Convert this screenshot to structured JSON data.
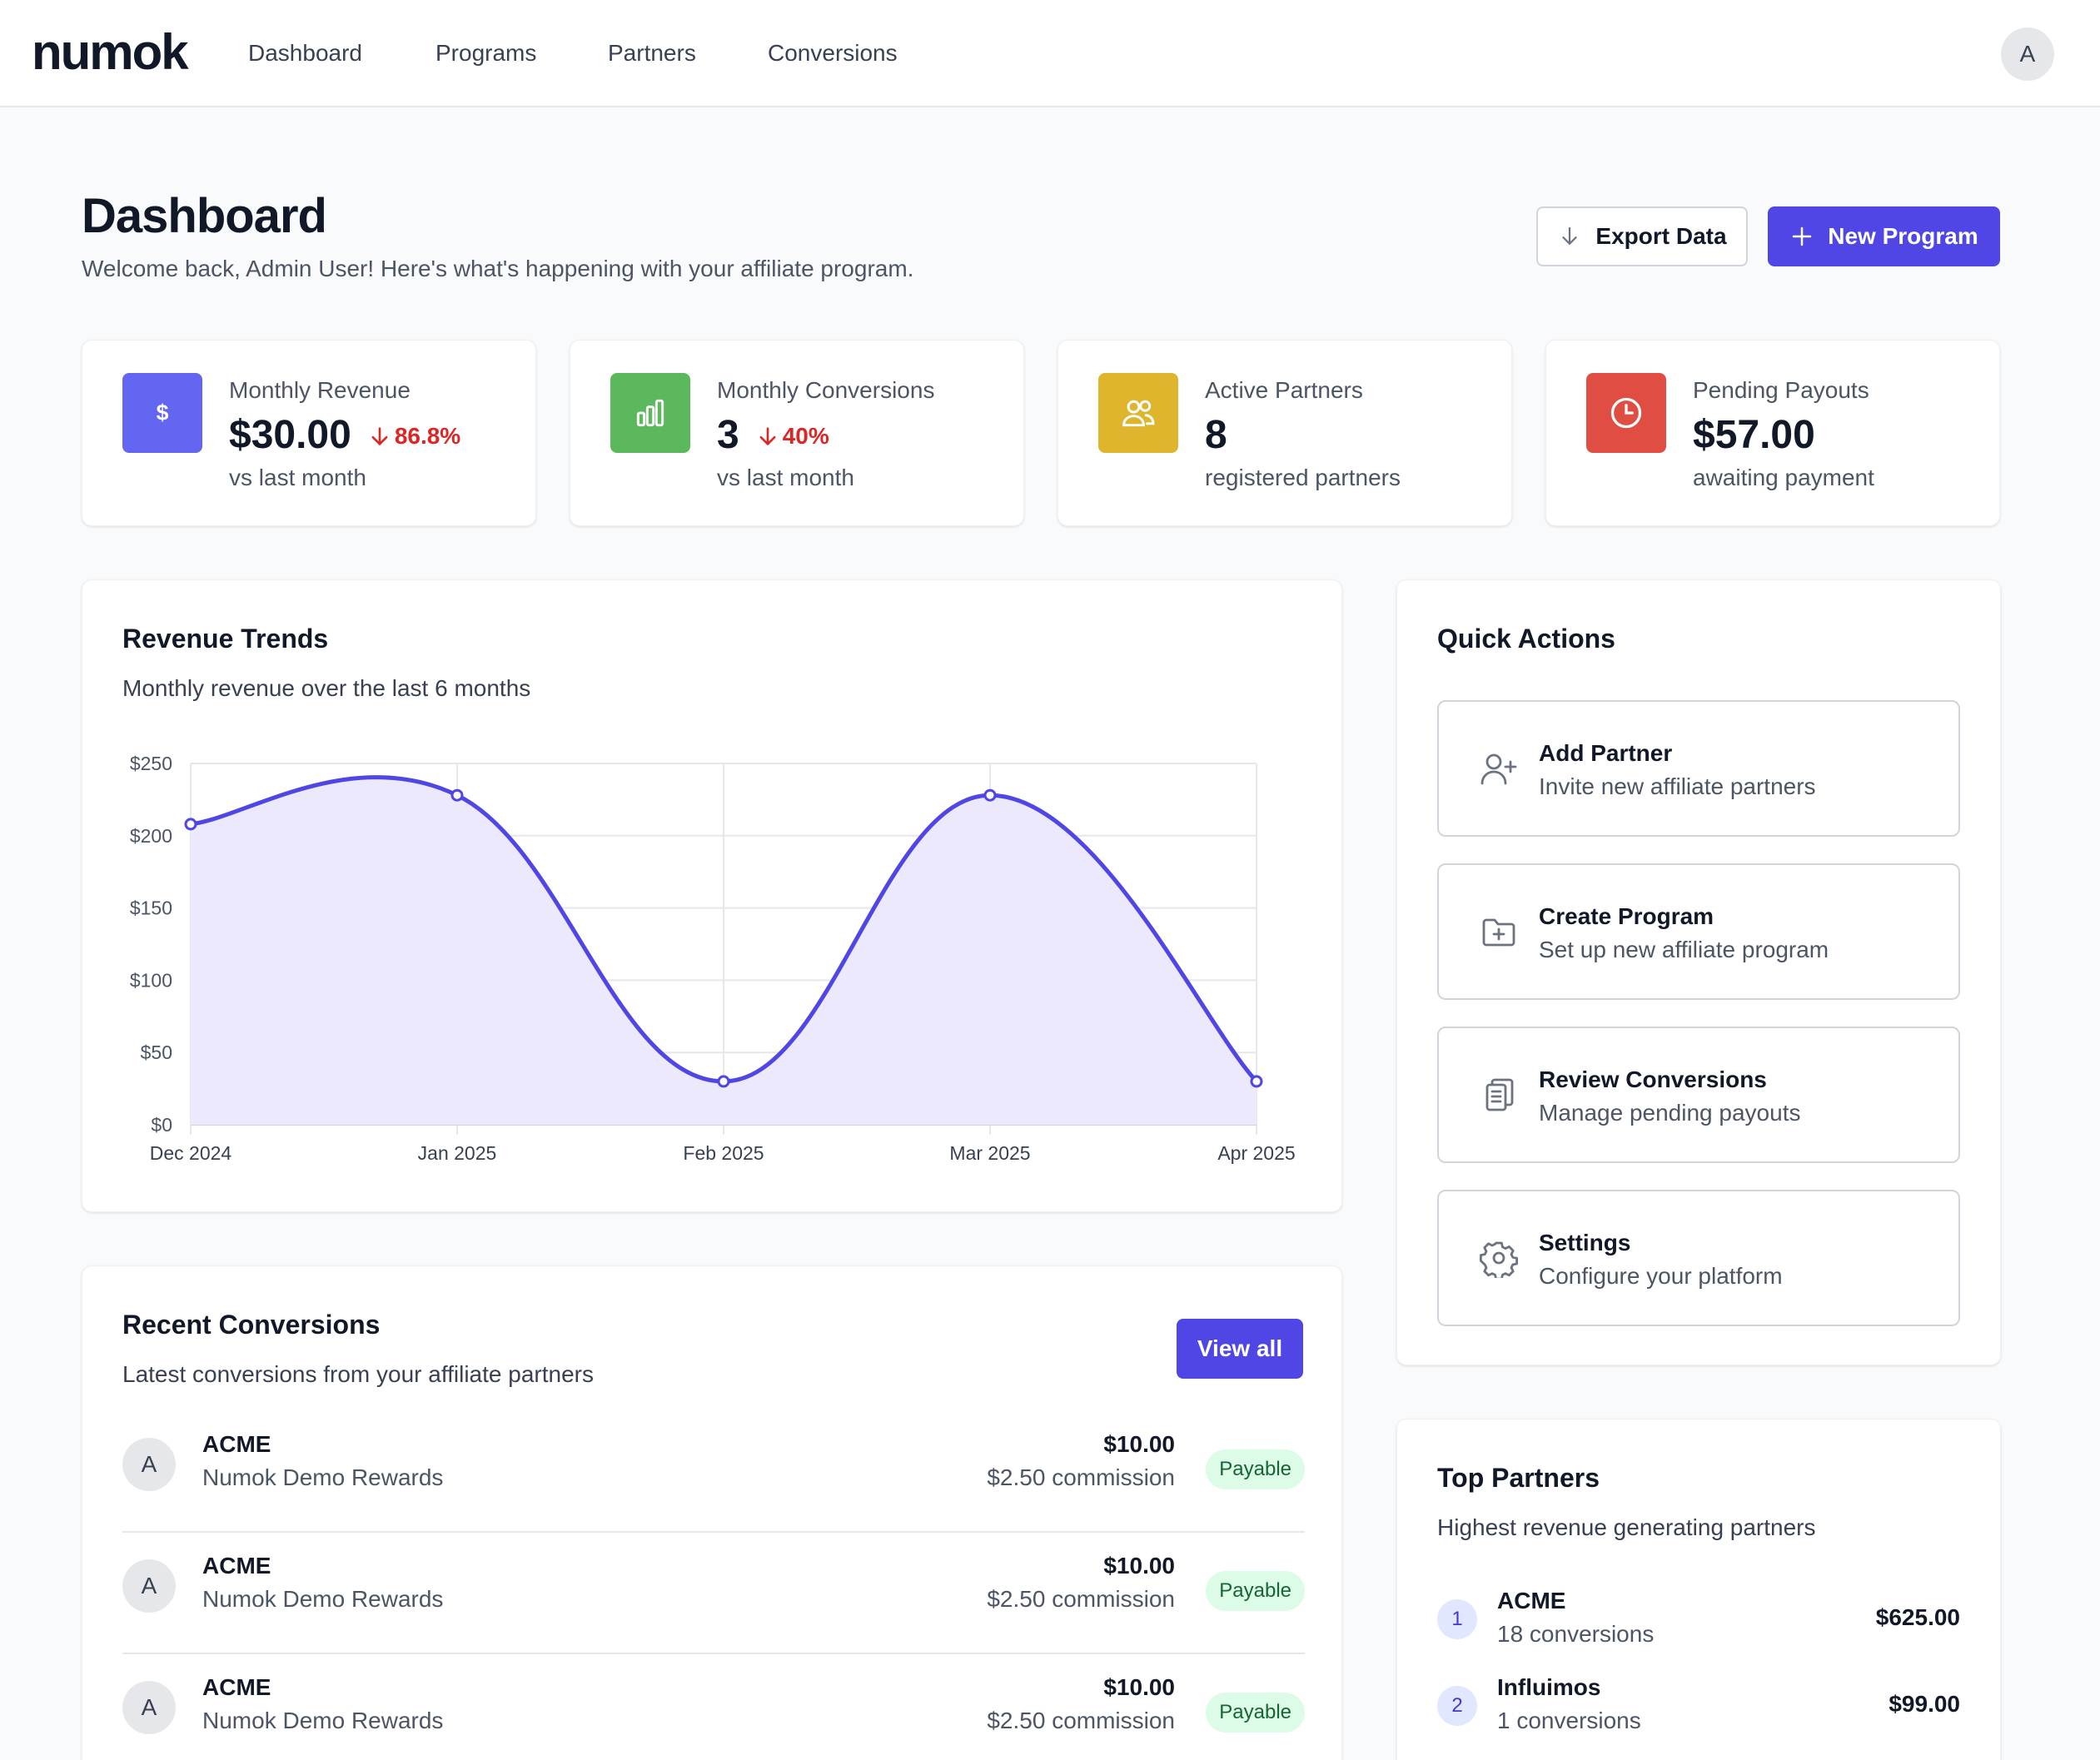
{
  "app": {
    "logo": "numok"
  },
  "nav": {
    "items": [
      "Dashboard",
      "Programs",
      "Partners",
      "Conversions"
    ],
    "user_initial": "A"
  },
  "header": {
    "title": "Dashboard",
    "subtitle": "Welcome back, Admin User! Here's what's happening with your affiliate program.",
    "export_label": "Export Data",
    "new_program_label": "New Program"
  },
  "stats": [
    {
      "label": "Monthly Revenue",
      "value": "$30.00",
      "change": "86.8%",
      "foot": "vs last month",
      "icon": "dollar-icon",
      "color": "#6366f1"
    },
    {
      "label": "Monthly Conversions",
      "value": "3",
      "change": "40%",
      "foot": "vs last month",
      "icon": "bar-chart-icon",
      "color": "#5cb85c"
    },
    {
      "label": "Active Partners",
      "value": "8",
      "change": "",
      "foot": "registered partners",
      "icon": "users-icon",
      "color": "#e0b52e"
    },
    {
      "label": "Pending Payouts",
      "value": "$57.00",
      "change": "",
      "foot": "awaiting payment",
      "icon": "clock-icon",
      "color": "#e04e43"
    }
  ],
  "revenue_trends": {
    "title": "Revenue Trends",
    "subtitle": "Monthly revenue over the last 6 months"
  },
  "chart_data": {
    "type": "area",
    "categories": [
      "Dec 2024",
      "Jan 2025",
      "Feb 2025",
      "Mar 2025",
      "Apr 2025"
    ],
    "values": [
      208,
      228,
      30,
      228,
      30
    ],
    "y_ticks": [
      "$0",
      "$50",
      "$100",
      "$150",
      "$200",
      "$250"
    ],
    "ylim": [
      0,
      250
    ],
    "grid": true,
    "line_color": "#4f46e5",
    "fill_color": "#ebe9fb"
  },
  "quick_actions": {
    "title": "Quick Actions",
    "items": [
      {
        "title": "Add Partner",
        "desc": "Invite new affiliate partners",
        "icon": "user-plus-icon"
      },
      {
        "title": "Create Program",
        "desc": "Set up new affiliate program",
        "icon": "folder-plus-icon"
      },
      {
        "title": "Review Conversions",
        "desc": "Manage pending payouts",
        "icon": "clipboard-icon"
      },
      {
        "title": "Settings",
        "desc": "Configure your platform",
        "icon": "gear-icon"
      }
    ]
  },
  "recent_conversions": {
    "title": "Recent Conversions",
    "subtitle": "Latest conversions from your affiliate partners",
    "view_all_label": "View all",
    "rows": [
      {
        "initial": "A",
        "name": "ACME",
        "program": "Numok Demo Rewards",
        "amount": "$10.00",
        "commission": "$2.50 commission",
        "status": "Payable"
      },
      {
        "initial": "A",
        "name": "ACME",
        "program": "Numok Demo Rewards",
        "amount": "$10.00",
        "commission": "$2.50 commission",
        "status": "Payable"
      },
      {
        "initial": "A",
        "name": "ACME",
        "program": "Numok Demo Rewards",
        "amount": "$10.00",
        "commission": "$2.50 commission",
        "status": "Payable"
      }
    ]
  },
  "top_partners": {
    "title": "Top Partners",
    "subtitle": "Highest revenue generating partners",
    "rows": [
      {
        "rank": "1",
        "name": "ACME",
        "conversions": "18 conversions",
        "amount": "$625.00"
      },
      {
        "rank": "2",
        "name": "Influimos",
        "conversions": "1 conversions",
        "amount": "$99.00"
      }
    ]
  }
}
